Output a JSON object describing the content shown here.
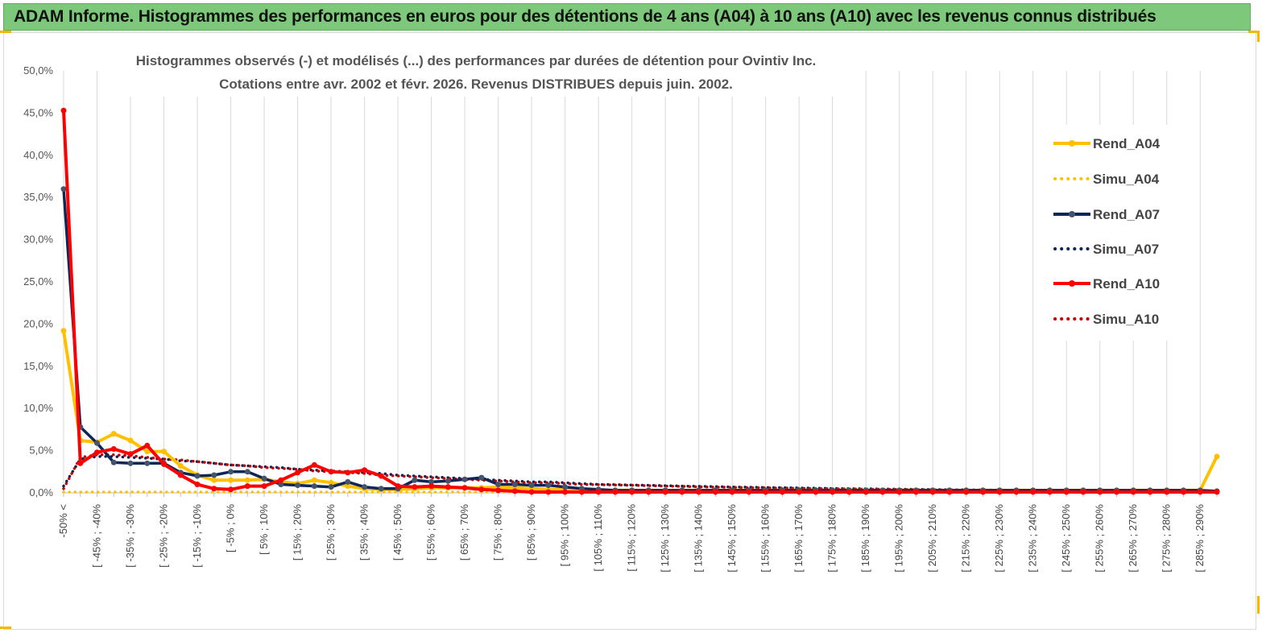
{
  "header": {
    "title": "ADAM Informe. Histogrammes des performances en euros pour des détentions de 4 ans (A04) à 10 ans (A10) avec les revenus connus distribués"
  },
  "colors": {
    "banner_bg": "#7dc87a",
    "A04": "#ffc000",
    "A07": "#0d2656",
    "A07_marker": "#44546a",
    "A10": "#ff0000",
    "grid": "#d9d9d9"
  },
  "chart_data": {
    "type": "line",
    "title_line1": "Histogrammes observés (-)  et modélisés (...) des performances par durées de détention pour Ovintiv Inc.",
    "title_line2": "Cotations entre avr. 2002 et févr. 2026. Revenus DISTRIBUES depuis juin. 2002.",
    "y_tick_labels": [
      "0,0%",
      "5,0%",
      "10,0%",
      "15,0%",
      "20,0%",
      "25,0%",
      "30,0%",
      "35,0%",
      "40,0%",
      "45,0%",
      "50,0%"
    ],
    "ylim": [
      0,
      50
    ],
    "x_tick_labels": [
      "-50% <",
      "[ -45% ; -40%",
      "[ -35% ; -30%",
      "[ -25% ; -20%",
      "[ -15% ; -10%",
      "[ -5% ; 0%",
      "[ 5% ; 10%",
      "[ 15% ; 20%",
      "[ 25% ; 30%",
      "[ 35% ; 40%",
      "[ 45% ; 50%",
      "[ 55% ; 60%",
      "[ 65% ; 70%",
      "[ 75% ; 80%",
      "[ 85% ; 90%",
      "[ 95% ; 100%",
      "[ 105% ; 110%",
      "[ 115% ; 120%",
      "[ 125% ; 130%",
      "[ 135% ; 140%",
      "[ 145% ; 150%",
      "[ 155% ; 160%",
      "[ 165% ; 170%",
      "[ 175% ; 180%",
      "[ 185% ; 190%",
      "[ 195% ; 200%",
      "[ 205% ; 210%",
      "[ 215% ; 220%",
      "[ 225% ; 230%",
      "[ 235% ; 240%",
      "[ 245% ; 250%",
      "[ 255% ; 260%",
      "[ 265% ; 270%",
      "[ 275% ; 280%",
      "[ 285% ; 290%"
    ],
    "n_categories": 70,
    "grid": true,
    "legend_position": "right",
    "series": [
      {
        "name": "Rend_A04",
        "style": "solid",
        "color": "#ffc000",
        "values": [
          19.2,
          6.2,
          6.0,
          7.0,
          6.2,
          4.9,
          4.9,
          3.2,
          2.1,
          1.5,
          1.5,
          1.5,
          1.6,
          1.3,
          1.1,
          1.5,
          1.2,
          0.8,
          0.5,
          0.4,
          0.4,
          0.5,
          0.6,
          0.6,
          0.6,
          0.6,
          0.7,
          0.6,
          0.5,
          0.4,
          0.4,
          0.3,
          0.3,
          0.3,
          0.3,
          0.3,
          0.3,
          0.3,
          0.3,
          0.3,
          0.3,
          0.3,
          0.3,
          0.3,
          0.3,
          0.3,
          0.3,
          0.3,
          0.3,
          0.3,
          0.3,
          0.3,
          0.3,
          0.3,
          0.3,
          0.3,
          0.3,
          0.3,
          0.3,
          0.3,
          0.3,
          0.3,
          0.3,
          0.3,
          0.3,
          0.3,
          0.3,
          0.3,
          0.3,
          4.3
        ]
      },
      {
        "name": "Simu_A04",
        "style": "dotted",
        "color": "#ffc000",
        "values": [
          0.1,
          0.1,
          0.1,
          0.1,
          0.1,
          0.1,
          0.1,
          0.1,
          0.1,
          0.1,
          0.1,
          0.1,
          0.1,
          0.1,
          0.1,
          0.1,
          0.1,
          0.1,
          0.1,
          0.1,
          0.1,
          0.1,
          0.1,
          0.1,
          0.1,
          0.1,
          0.1,
          0.1,
          0.1,
          0.1,
          0.1,
          0.1,
          0.1,
          0.1,
          0.1,
          0.1,
          0.1,
          0.1,
          0.1,
          0.1,
          0.1,
          0.1,
          0.1,
          0.1,
          0.1,
          0.1,
          0.1,
          0.1,
          0.1,
          0.1,
          0.1,
          0.1,
          0.1,
          0.1,
          0.1,
          0.1,
          0.1,
          0.1,
          0.1,
          0.1,
          0.1,
          0.1,
          0.1,
          0.1,
          0.1,
          0.1,
          0.1,
          0.1,
          0.1,
          0.1
        ]
      },
      {
        "name": "Rend_A07",
        "style": "solid",
        "color": "#0d2656",
        "values": [
          36.0,
          7.8,
          5.9,
          3.6,
          3.5,
          3.5,
          3.5,
          2.4,
          2.0,
          2.1,
          2.5,
          2.5,
          1.7,
          1.0,
          0.9,
          0.8,
          0.7,
          1.3,
          0.7,
          0.5,
          0.5,
          1.5,
          1.3,
          1.4,
          1.6,
          1.8,
          1.0,
          1.0,
          0.9,
          0.9,
          0.7,
          0.5,
          0.4,
          0.3,
          0.3,
          0.3,
          0.3,
          0.3,
          0.3,
          0.3,
          0.3,
          0.3,
          0.3,
          0.3,
          0.3,
          0.3,
          0.3,
          0.3,
          0.3,
          0.3,
          0.3,
          0.3,
          0.3,
          0.3,
          0.3,
          0.3,
          0.3,
          0.3,
          0.3,
          0.3,
          0.3,
          0.3,
          0.3,
          0.3,
          0.3,
          0.3,
          0.3,
          0.3,
          0.3,
          0.2
        ]
      },
      {
        "name": "Simu_A07",
        "style": "dotted",
        "color": "#0d2656",
        "values": [
          0.8,
          4.0,
          4.3,
          4.3,
          4.2,
          4.1,
          4.0,
          3.8,
          3.7,
          3.5,
          3.3,
          3.2,
          3.1,
          3.0,
          2.8,
          2.7,
          2.6,
          2.5,
          2.4,
          2.3,
          2.1,
          2.0,
          1.9,
          1.8,
          1.7,
          1.6,
          1.5,
          1.4,
          1.3,
          1.3,
          1.2,
          1.1,
          1.0,
          0.97,
          0.93,
          0.9,
          0.85,
          0.8,
          0.77,
          0.74,
          0.7,
          0.67,
          0.64,
          0.61,
          0.58,
          0.55,
          0.52,
          0.5,
          0.48,
          0.46,
          0.44,
          0.42,
          0.4,
          0.38,
          0.36,
          0.34,
          0.32,
          0.3,
          0.29,
          0.28,
          0.27,
          0.26,
          0.25,
          0.24,
          0.23,
          0.22,
          0.21,
          0.2,
          0.19,
          0.18
        ]
      },
      {
        "name": "Rend_A10",
        "style": "solid",
        "color": "#ff0000",
        "values": [
          45.3,
          3.5,
          4.8,
          5.2,
          4.6,
          5.6,
          3.4,
          2.1,
          1.0,
          0.5,
          0.4,
          0.8,
          0.8,
          1.5,
          2.4,
          3.3,
          2.5,
          2.4,
          2.7,
          2.0,
          0.8,
          0.7,
          0.8,
          0.7,
          0.6,
          0.4,
          0.3,
          0.2,
          0.1,
          0.1,
          0.1,
          0.1,
          0.1,
          0.1,
          0.1,
          0.1,
          0.1,
          0.1,
          0.1,
          0.1,
          0.1,
          0.1,
          0.1,
          0.1,
          0.1,
          0.1,
          0.1,
          0.1,
          0.1,
          0.1,
          0.1,
          0.1,
          0.1,
          0.1,
          0.1,
          0.1,
          0.1,
          0.1,
          0.1,
          0.1,
          0.1,
          0.1,
          0.1,
          0.1,
          0.1,
          0.1,
          0.1,
          0.1,
          0.1,
          0.1
        ]
      },
      {
        "name": "Simu_A10",
        "style": "dotted",
        "color": "#c00000",
        "values": [
          0.5,
          4.2,
          4.5,
          4.5,
          4.4,
          4.2,
          4.0,
          3.9,
          3.7,
          3.5,
          3.3,
          3.2,
          3.0,
          2.9,
          2.8,
          2.6,
          2.5,
          2.4,
          2.3,
          2.1,
          2.0,
          1.9,
          1.8,
          1.7,
          1.6,
          1.5,
          1.4,
          1.3,
          1.2,
          1.2,
          1.1,
          1.0,
          0.97,
          0.93,
          0.9,
          0.85,
          0.8,
          0.76,
          0.72,
          0.68,
          0.65,
          0.62,
          0.59,
          0.56,
          0.53,
          0.5,
          0.48,
          0.46,
          0.44,
          0.42,
          0.4,
          0.38,
          0.36,
          0.34,
          0.32,
          0.3,
          0.29,
          0.28,
          0.27,
          0.26,
          0.25,
          0.24,
          0.23,
          0.22,
          0.21,
          0.2,
          0.19,
          0.18,
          0.17,
          0.16
        ]
      }
    ]
  }
}
